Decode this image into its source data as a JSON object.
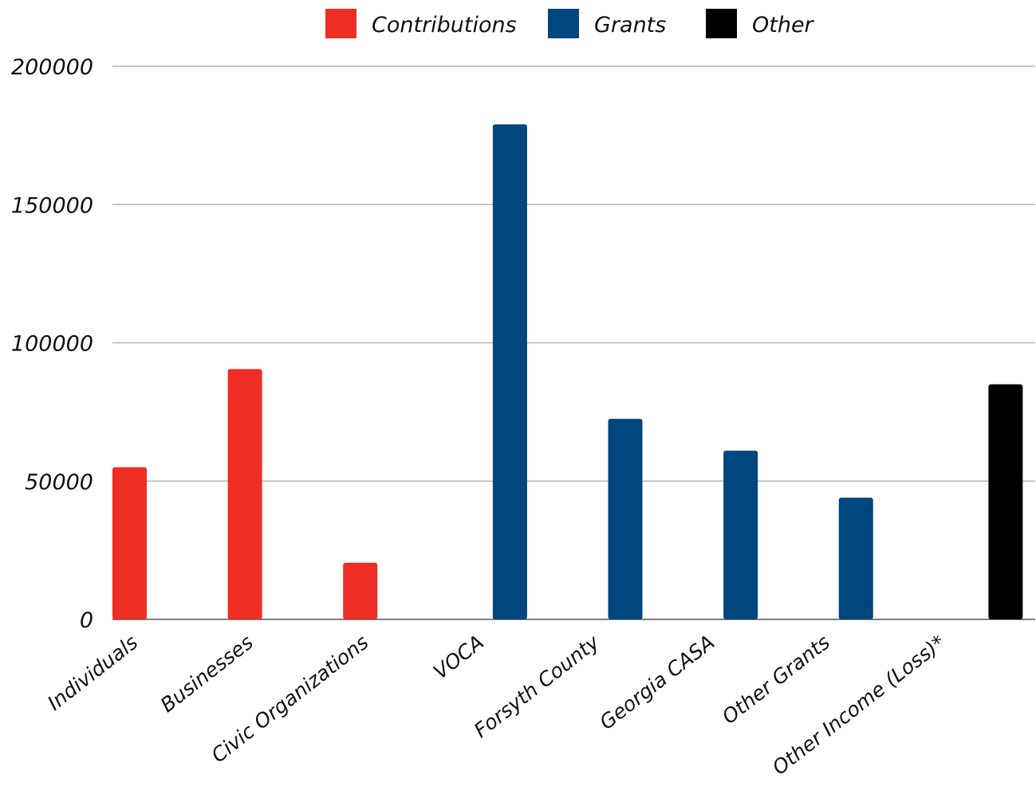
{
  "chart_data": {
    "type": "bar",
    "title": "",
    "xlabel": "",
    "ylabel": "",
    "categories": [
      "Individuals",
      "Businesses",
      "Civic Organizations",
      "VOCA",
      "Forsyth County",
      "Georgia CASA",
      "Other Grants",
      "Other Income (Loss)*"
    ],
    "series": [
      {
        "name": "Contributions",
        "color": "#ee2e24",
        "values": [
          55000,
          90500,
          20500,
          null,
          null,
          null,
          null,
          null
        ]
      },
      {
        "name": "Grants",
        "color": "#00467f",
        "values": [
          null,
          null,
          null,
          179000,
          72500,
          61000,
          44000,
          null
        ]
      },
      {
        "name": "Other",
        "color": "#000000",
        "values": [
          null,
          null,
          null,
          null,
          null,
          null,
          null,
          85000
        ]
      }
    ],
    "ylim": [
      0,
      200000
    ],
    "yticks": [
      0,
      50000,
      100000,
      150000,
      200000
    ],
    "grid": true,
    "legend_position": "top"
  }
}
